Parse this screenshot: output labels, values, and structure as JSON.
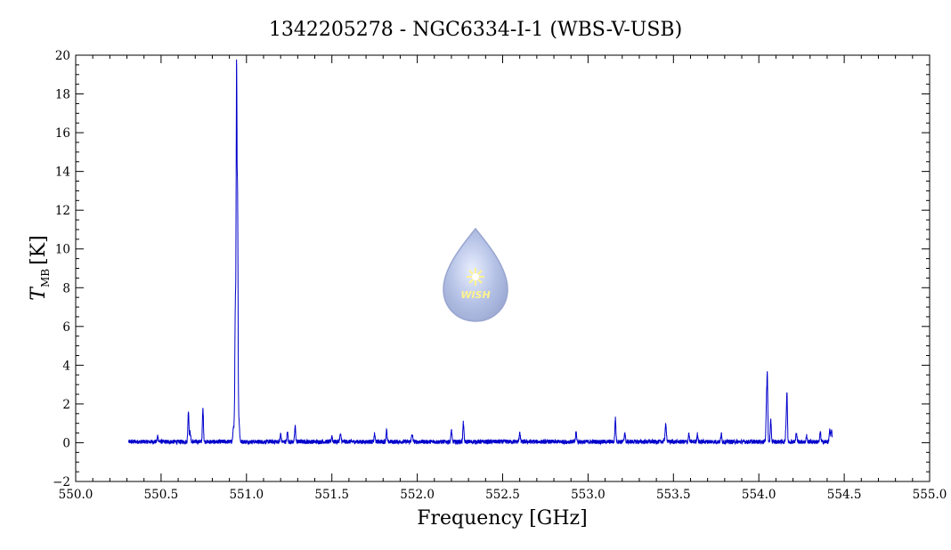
{
  "chart_data": {
    "type": "line",
    "title": "1342205278 - NGC6334-I-1 (WBS-V-USB)",
    "xlabel": "Frequency [GHz]",
    "ylabel_main": "T",
    "ylabel_sub": "MB",
    "ylabel_unit": "[K]",
    "xlim": [
      550.0,
      555.0
    ],
    "ylim": [
      -2,
      20
    ],
    "x_ticks": [
      "550.0",
      "550.5",
      "551.0",
      "551.5",
      "552.0",
      "552.5",
      "553.0",
      "553.5",
      "554.0",
      "554.5",
      "555.0"
    ],
    "y_ticks": [
      "−2",
      "0",
      "2",
      "4",
      "6",
      "8",
      "10",
      "12",
      "14",
      "16",
      "18",
      "20"
    ],
    "grid": false,
    "series": [
      {
        "color": "#0000cc",
        "x_range": [
          550.31,
          554.43
        ],
        "baseline": 0.05,
        "lines": [
          {
            "x": 550.48,
            "y": 0.3,
            "w": 0.003
          },
          {
            "x": 550.66,
            "y": 1.6,
            "w": 0.003
          },
          {
            "x": 550.67,
            "y": 0.5,
            "w": 0.003
          },
          {
            "x": 550.745,
            "y": 1.7,
            "w": 0.003
          },
          {
            "x": 550.925,
            "y": 0.8,
            "w": 0.004
          },
          {
            "x": 550.935,
            "y": 7.0,
            "w": 0.003
          },
          {
            "x": 550.942,
            "y": 18.7,
            "w": 0.0025
          },
          {
            "x": 550.948,
            "y": 11.8,
            "w": 0.0025
          },
          {
            "x": 550.955,
            "y": 1.2,
            "w": 0.004
          },
          {
            "x": 551.2,
            "y": 0.4,
            "w": 0.003
          },
          {
            "x": 551.24,
            "y": 0.5,
            "w": 0.003
          },
          {
            "x": 551.285,
            "y": 0.8,
            "w": 0.003
          },
          {
            "x": 551.5,
            "y": 0.3,
            "w": 0.003
          },
          {
            "x": 551.55,
            "y": 0.35,
            "w": 0.004
          },
          {
            "x": 551.75,
            "y": 0.4,
            "w": 0.003
          },
          {
            "x": 551.82,
            "y": 0.6,
            "w": 0.003
          },
          {
            "x": 551.97,
            "y": 0.35,
            "w": 0.004
          },
          {
            "x": 552.2,
            "y": 0.6,
            "w": 0.003
          },
          {
            "x": 552.27,
            "y": 1.0,
            "w": 0.003
          },
          {
            "x": 552.6,
            "y": 0.5,
            "w": 0.003
          },
          {
            "x": 552.93,
            "y": 0.5,
            "w": 0.003
          },
          {
            "x": 553.16,
            "y": 1.2,
            "w": 0.003
          },
          {
            "x": 553.215,
            "y": 0.5,
            "w": 0.003
          },
          {
            "x": 553.455,
            "y": 0.85,
            "w": 0.004
          },
          {
            "x": 553.59,
            "y": 0.4,
            "w": 0.003
          },
          {
            "x": 553.64,
            "y": 0.4,
            "w": 0.003
          },
          {
            "x": 553.78,
            "y": 0.4,
            "w": 0.003
          },
          {
            "x": 554.05,
            "y": 3.0,
            "w": 0.0025
          },
          {
            "x": 554.045,
            "y": 2.0,
            "w": 0.003
          },
          {
            "x": 554.07,
            "y": 1.1,
            "w": 0.003
          },
          {
            "x": 554.165,
            "y": 2.3,
            "w": 0.0025
          },
          {
            "x": 554.16,
            "y": 1.0,
            "w": 0.003
          },
          {
            "x": 554.22,
            "y": 0.5,
            "w": 0.003
          },
          {
            "x": 554.28,
            "y": 0.3,
            "w": 0.003
          },
          {
            "x": 554.36,
            "y": 0.5,
            "w": 0.003
          },
          {
            "x": 554.415,
            "y": 0.6,
            "w": 0.003
          },
          {
            "x": 554.425,
            "y": 0.6,
            "w": 0.003
          }
        ]
      }
    ]
  },
  "watermark": {
    "text": "WISH",
    "colors": {
      "drop": "#9fb0dc",
      "drop_edge": "#8796c8",
      "star": "#fff27a"
    }
  }
}
